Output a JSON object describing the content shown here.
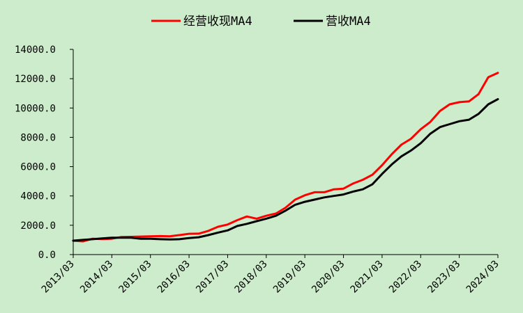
{
  "chart_data": {
    "type": "line",
    "title": "",
    "xlabel": "",
    "ylabel": "",
    "ylim": [
      0,
      14000
    ],
    "yticks": [
      "0.0",
      "2000.0",
      "4000.0",
      "6000.0",
      "8000.0",
      "10000.0",
      "12000.0",
      "14000.0"
    ],
    "ytick_values": [
      0,
      2000,
      4000,
      6000,
      8000,
      10000,
      12000,
      14000
    ],
    "xtick_labels": [
      "2013/03",
      "2014/03",
      "2015/03",
      "2016/03",
      "2017/03",
      "2018/03",
      "2019/03",
      "2020/03",
      "2021/03",
      "2022/03",
      "2023/03",
      "2024/03"
    ],
    "legend_position": "top-center",
    "grid": false,
    "x": [
      "2013/03",
      "2013/06",
      "2013/09",
      "2013/12",
      "2014/03",
      "2014/06",
      "2014/09",
      "2014/12",
      "2015/03",
      "2015/06",
      "2015/09",
      "2015/12",
      "2016/03",
      "2016/06",
      "2016/09",
      "2016/12",
      "2017/03",
      "2017/06",
      "2017/09",
      "2017/12",
      "2018/03",
      "2018/06",
      "2018/09",
      "2018/12",
      "2019/03",
      "2019/06",
      "2019/09",
      "2019/12",
      "2020/03",
      "2020/06",
      "2020/09",
      "2020/12",
      "2021/03",
      "2021/06",
      "2021/09",
      "2021/12",
      "2022/03",
      "2022/06",
      "2022/09",
      "2022/12",
      "2023/03",
      "2023/06",
      "2023/09",
      "2023/12",
      "2024/03"
    ],
    "series": [
      {
        "name": "经营收现MA4",
        "color": "#ff0000",
        "values": [
          950,
          900,
          1080,
          1060,
          1080,
          1200,
          1210,
          1230,
          1250,
          1260,
          1250,
          1330,
          1420,
          1430,
          1620,
          1900,
          2050,
          2350,
          2600,
          2450,
          2650,
          2800,
          3200,
          3750,
          4050,
          4250,
          4250,
          4450,
          4500,
          4850,
          5100,
          5450,
          6100,
          6850,
          7500,
          7900,
          8550,
          9050,
          9800,
          10250,
          10400,
          10450,
          10950,
          12100,
          12400
        ]
      },
      {
        "name": "营收MA4",
        "color": "#000000",
        "values": [
          950,
          1000,
          1050,
          1100,
          1150,
          1150,
          1150,
          1080,
          1080,
          1050,
          1030,
          1050,
          1130,
          1180,
          1330,
          1500,
          1650,
          1950,
          2100,
          2280,
          2450,
          2650,
          3000,
          3400,
          3600,
          3750,
          3900,
          4000,
          4100,
          4300,
          4450,
          4800,
          5500,
          6150,
          6700,
          7100,
          7600,
          8250,
          8700,
          8900,
          9100,
          9200,
          9600,
          10250,
          10600
        ]
      }
    ]
  }
}
